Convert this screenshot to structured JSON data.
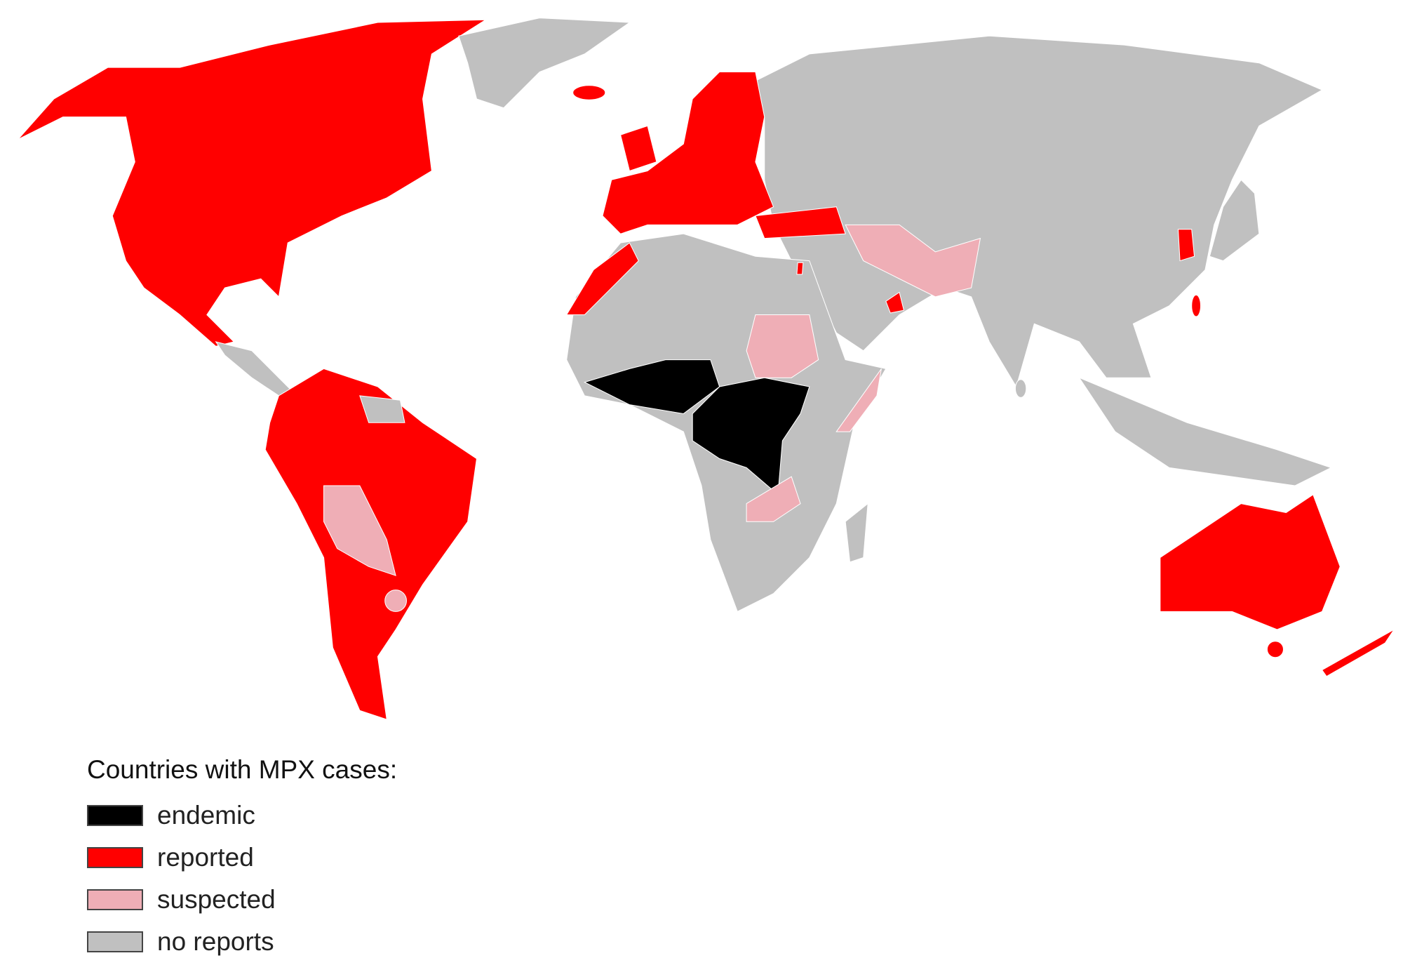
{
  "map": {
    "categories": {
      "endemic": "#000000",
      "reported": "#ff0000",
      "suspected": "#efaeb6",
      "no_reports": "#c0c0c0"
    }
  },
  "legend": {
    "title": "Countries with MPX cases:",
    "items": [
      {
        "label": "endemic",
        "color": "#000000"
      },
      {
        "label": "reported",
        "color": "#ff0000"
      },
      {
        "label": "suspected",
        "color": "#efaeb6"
      },
      {
        "label": "no reports",
        "color": "#c0c0c0"
      }
    ]
  }
}
